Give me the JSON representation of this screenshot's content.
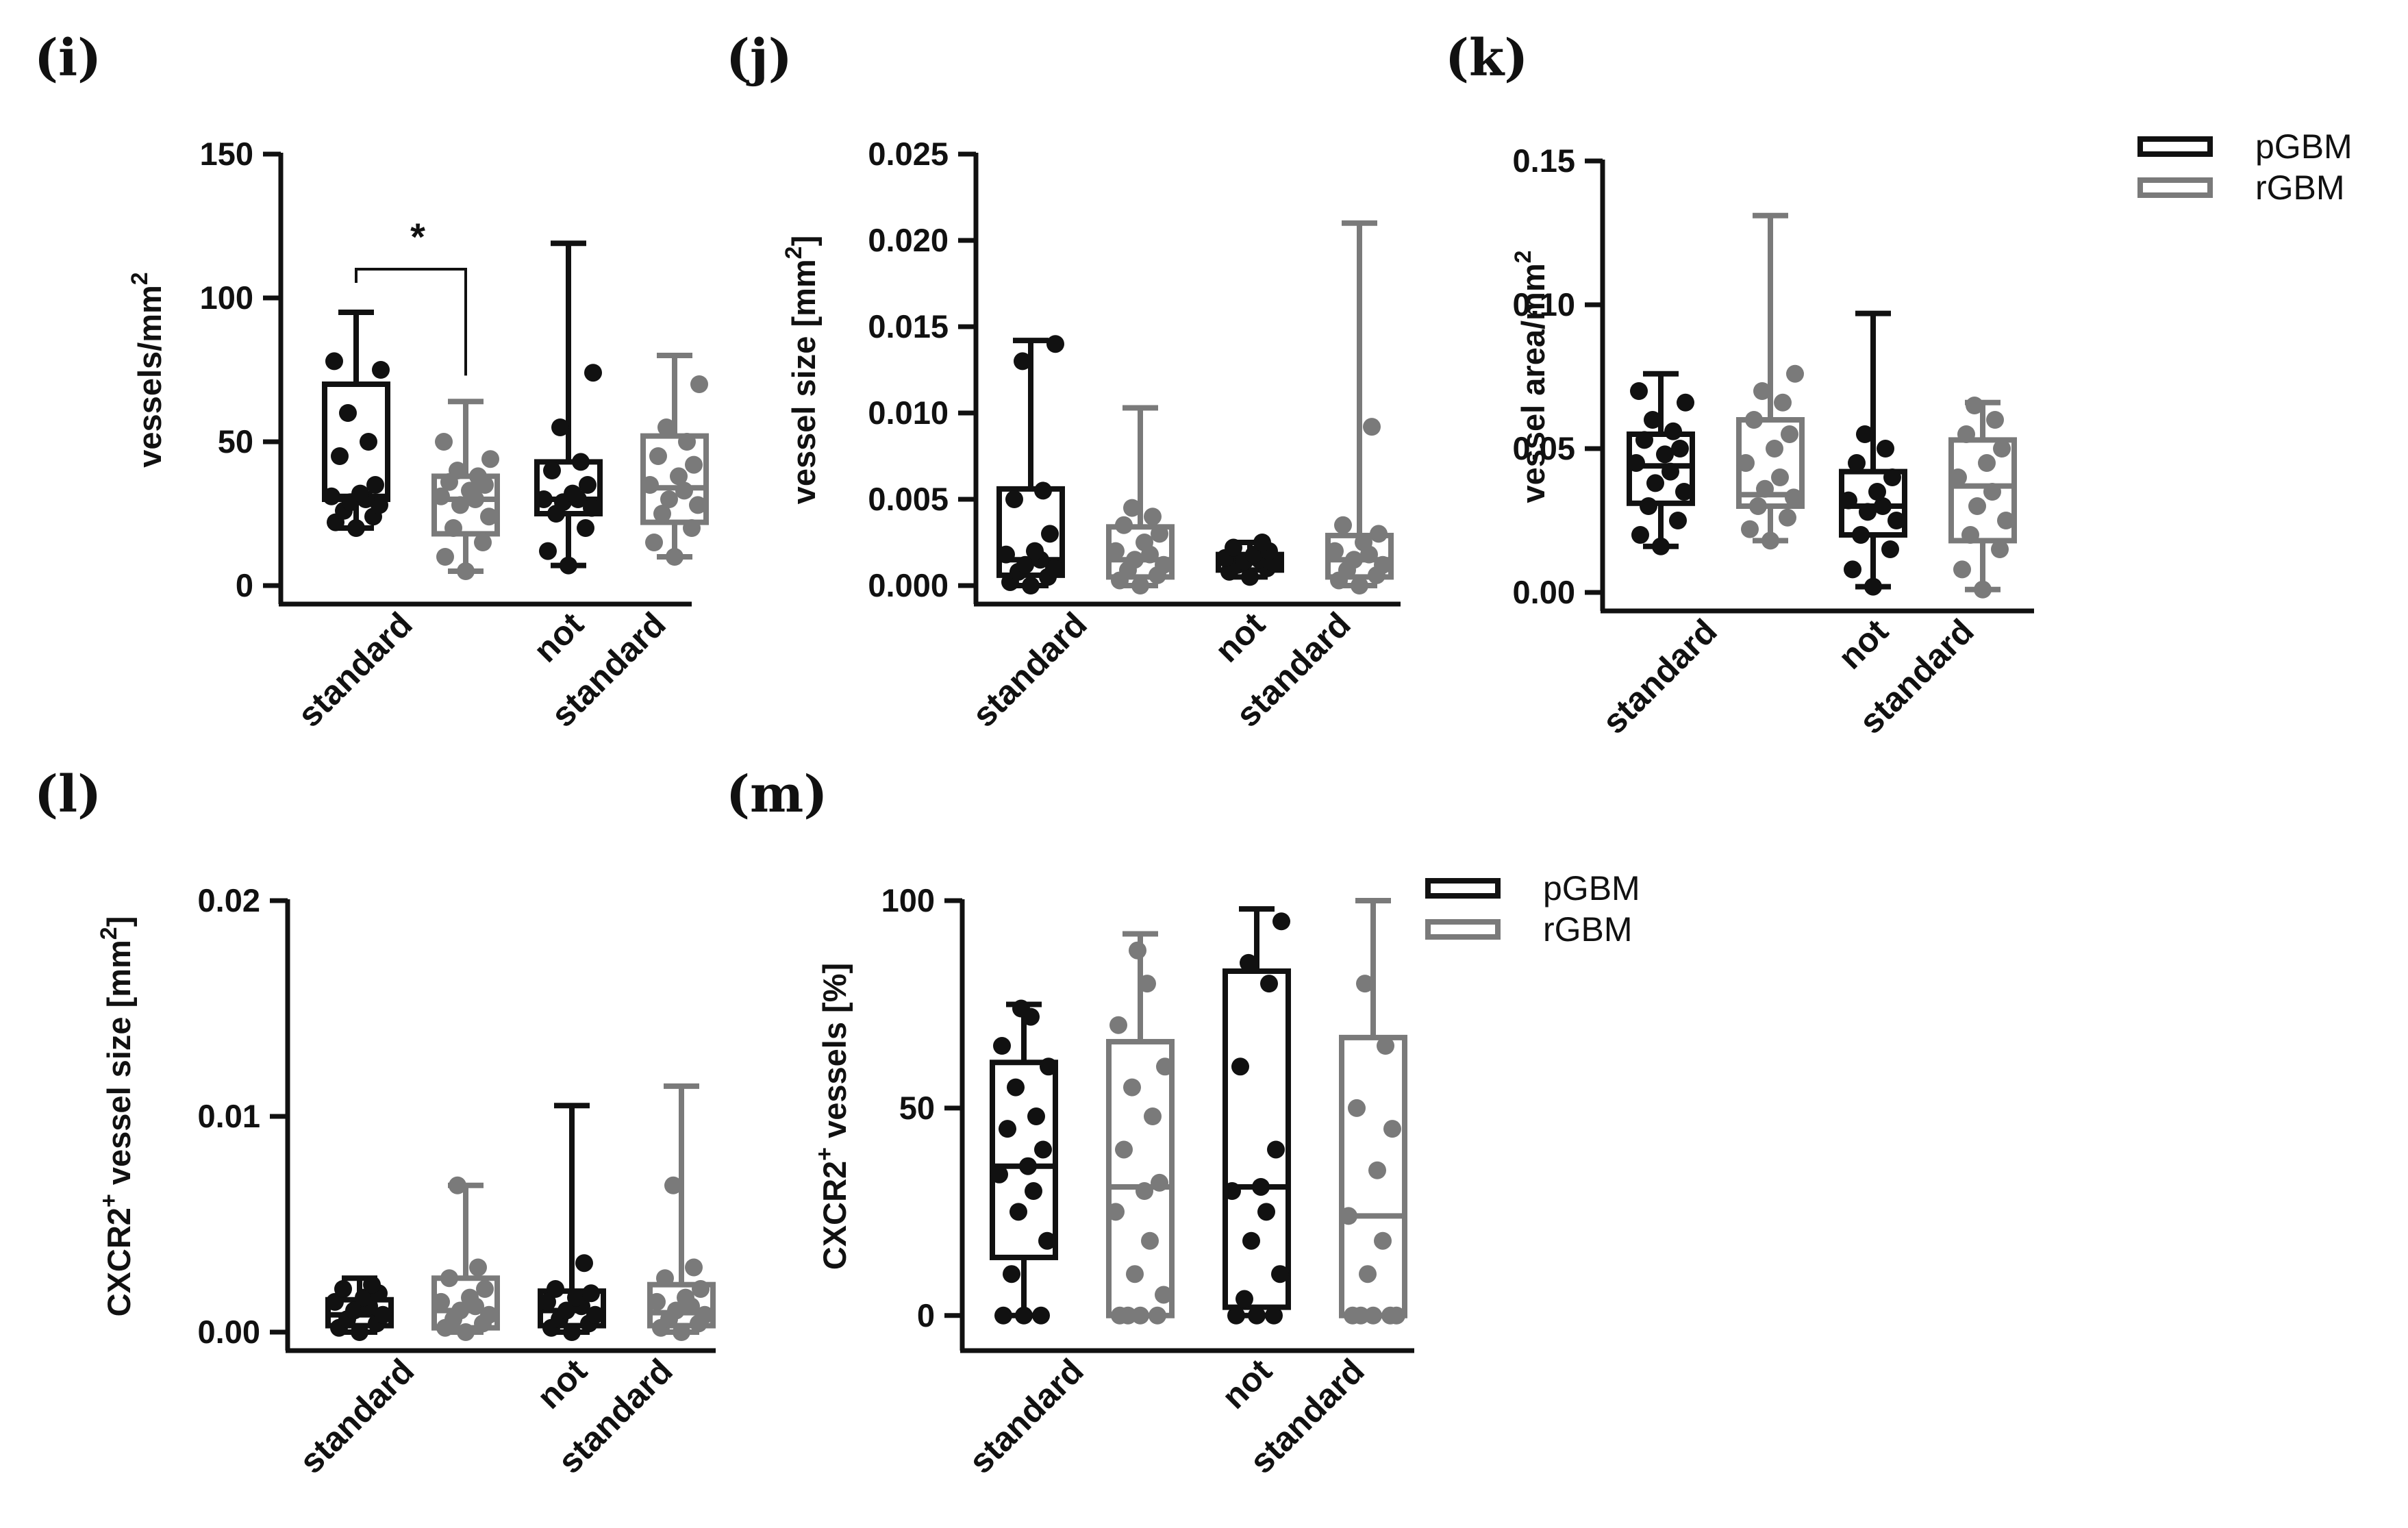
{
  "figure": {
    "colors": {
      "pGBM": "#111111",
      "rGBM": "#7a7a7a"
    },
    "legend_labels": [
      "pGBM",
      "rGBM"
    ]
  },
  "chart_data": [
    {
      "id": "i",
      "panel_label": "(i)",
      "type": "box",
      "ylabel": "vessels/mm",
      "ylabel_sup": "2",
      "ylim": [
        0,
        150
      ],
      "yticks": [
        0,
        50,
        100,
        150
      ],
      "ytick_labels": [
        "0",
        "50",
        "100",
        "150"
      ],
      "category_labels": [
        "standard",
        "not",
        "standard"
      ],
      "significance": "*",
      "groups": [
        {
          "series": "pGBM",
          "min": 20,
          "q1": 30,
          "median": 31,
          "q3": 70,
          "max": 95,
          "points": [
            20,
            22,
            24,
            26,
            28,
            29,
            30,
            31,
            32,
            35,
            45,
            50,
            60,
            75,
            78
          ]
        },
        {
          "series": "rGBM",
          "min": 5,
          "q1": 18,
          "median": 30,
          "q3": 38,
          "max": 64,
          "points": [
            5,
            10,
            15,
            20,
            24,
            28,
            30,
            31,
            33,
            35,
            36,
            38,
            40,
            44,
            50
          ]
        },
        {
          "series": "pGBM",
          "min": 7,
          "q1": 25,
          "median": 30,
          "q3": 43,
          "max": 119,
          "points": [
            7,
            12,
            20,
            25,
            27,
            29,
            30,
            30,
            32,
            35,
            40,
            43,
            55,
            74
          ]
        },
        {
          "series": "rGBM",
          "min": 10,
          "q1": 22,
          "median": 34,
          "q3": 52,
          "max": 80,
          "points": [
            10,
            15,
            20,
            25,
            28,
            30,
            33,
            35,
            38,
            42,
            45,
            50,
            55,
            70
          ]
        }
      ]
    },
    {
      "id": "j",
      "panel_label": "(j)",
      "type": "box",
      "ylabel": "vessel size [mm",
      "ylabel_sup": "2",
      "ylabel_suffix": "]",
      "ylim": [
        0,
        0.025
      ],
      "yticks": [
        0,
        0.005,
        0.01,
        0.015,
        0.02,
        0.025
      ],
      "ytick_labels": [
        "0.000",
        "0.005",
        "0.010",
        "0.015",
        "0.020",
        "0.025"
      ],
      "category_labels": [
        "standard",
        "not",
        "standard"
      ],
      "groups": [
        {
          "series": "pGBM",
          "min": 0.0,
          "q1": 0.0006,
          "median": 0.0015,
          "q3": 0.0056,
          "max": 0.0142,
          "points": [
            0.0,
            0.0002,
            0.0005,
            0.0008,
            0.001,
            0.0012,
            0.0015,
            0.0018,
            0.002,
            0.003,
            0.005,
            0.0055,
            0.013,
            0.014
          ]
        },
        {
          "series": "rGBM",
          "min": 0.0,
          "q1": 0.0005,
          "median": 0.0015,
          "q3": 0.0034,
          "max": 0.0103,
          "points": [
            0.0,
            0.0003,
            0.0006,
            0.0009,
            0.0012,
            0.0015,
            0.0018,
            0.002,
            0.0025,
            0.003,
            0.0035,
            0.004,
            0.0045
          ]
        },
        {
          "series": "pGBM",
          "min": 0.0005,
          "q1": 0.0009,
          "median": 0.0014,
          "q3": 0.0018,
          "max": 0.0025,
          "points": [
            0.0005,
            0.0008,
            0.001,
            0.0012,
            0.0013,
            0.0014,
            0.0015,
            0.0016,
            0.0018,
            0.002,
            0.0022,
            0.0025
          ]
        },
        {
          "series": "rGBM",
          "min": 0.0,
          "q1": 0.0005,
          "median": 0.0015,
          "q3": 0.0029,
          "max": 0.021,
          "points": [
            0.0,
            0.0003,
            0.0006,
            0.0009,
            0.0012,
            0.0015,
            0.0018,
            0.002,
            0.0025,
            0.003,
            0.0035,
            0.0092
          ]
        }
      ]
    },
    {
      "id": "k",
      "panel_label": "(k)",
      "type": "box",
      "ylabel": "vessel area/mm",
      "ylabel_sup": "2",
      "ylim": [
        0,
        0.15
      ],
      "yticks": [
        0,
        0.05,
        0.1,
        0.15
      ],
      "ytick_labels": [
        "0.00",
        "0.05",
        "0.10",
        "0.15"
      ],
      "category_labels": [
        "standard",
        "not",
        "standard"
      ],
      "groups": [
        {
          "series": "pGBM",
          "min": 0.016,
          "q1": 0.031,
          "median": 0.044,
          "q3": 0.055,
          "max": 0.076,
          "points": [
            0.016,
            0.02,
            0.025,
            0.03,
            0.035,
            0.038,
            0.042,
            0.045,
            0.048,
            0.05,
            0.053,
            0.056,
            0.06,
            0.066,
            0.07
          ]
        },
        {
          "series": "rGBM",
          "min": 0.018,
          "q1": 0.03,
          "median": 0.034,
          "q3": 0.06,
          "max": 0.131,
          "points": [
            0.018,
            0.022,
            0.026,
            0.03,
            0.033,
            0.036,
            0.04,
            0.045,
            0.05,
            0.055,
            0.06,
            0.066,
            0.07,
            0.076
          ]
        },
        {
          "series": "pGBM",
          "min": 0.002,
          "q1": 0.02,
          "median": 0.03,
          "q3": 0.042,
          "max": 0.097,
          "points": [
            0.002,
            0.008,
            0.015,
            0.02,
            0.025,
            0.028,
            0.03,
            0.032,
            0.035,
            0.04,
            0.045,
            0.05,
            0.055
          ]
        },
        {
          "series": "rGBM",
          "min": 0.001,
          "q1": 0.018,
          "median": 0.037,
          "q3": 0.053,
          "max": 0.066,
          "points": [
            0.001,
            0.008,
            0.015,
            0.02,
            0.025,
            0.03,
            0.035,
            0.04,
            0.045,
            0.05,
            0.055,
            0.06,
            0.065
          ]
        }
      ]
    },
    {
      "id": "l",
      "panel_label": "(l)",
      "type": "box",
      "ylabel": "CXCR2",
      "ylabel_sup": "+",
      "ylabel_suffix": " vessel size  [mm",
      "ylabel_sup2": "2",
      "ylabel_suffix2": "]",
      "ylim": [
        0,
        0.02
      ],
      "yticks": [
        0,
        0.01,
        0.02
      ],
      "ytick_labels": [
        "0.00",
        "0.01",
        "0.02"
      ],
      "category_labels": [
        "standard",
        "not",
        "standard"
      ],
      "groups": [
        {
          "series": "pGBM",
          "min": 0.0,
          "q1": 0.0003,
          "median": 0.0008,
          "q3": 0.0015,
          "max": 0.0025,
          "points": [
            0.0,
            0.0002,
            0.0004,
            0.0006,
            0.0008,
            0.001,
            0.0012,
            0.0014,
            0.0016,
            0.0018,
            0.002,
            0.0022
          ]
        },
        {
          "series": "rGBM",
          "min": 0.0,
          "q1": 0.0002,
          "median": 0.001,
          "q3": 0.0025,
          "max": 0.0068,
          "points": [
            0.0,
            0.0002,
            0.0004,
            0.0006,
            0.0008,
            0.001,
            0.0012,
            0.0014,
            0.0016,
            0.002,
            0.0025,
            0.003,
            0.0068
          ]
        },
        {
          "series": "pGBM",
          "min": 0.0,
          "q1": 0.0003,
          "median": 0.001,
          "q3": 0.0019,
          "max": 0.0105,
          "points": [
            0.0,
            0.0002,
            0.0004,
            0.0006,
            0.0008,
            0.001,
            0.0012,
            0.0014,
            0.0016,
            0.0018,
            0.002,
            0.0032
          ]
        },
        {
          "series": "rGBM",
          "min": 0.0,
          "q1": 0.0003,
          "median": 0.0009,
          "q3": 0.0022,
          "max": 0.0114,
          "points": [
            0.0,
            0.0002,
            0.0004,
            0.0006,
            0.0008,
            0.001,
            0.0012,
            0.0014,
            0.0016,
            0.002,
            0.0025,
            0.003,
            0.0068
          ]
        }
      ]
    },
    {
      "id": "m",
      "panel_label": "(m)",
      "type": "box",
      "ylabel": "CXCR2",
      "ylabel_sup": "+",
      "ylabel_suffix": " vessels [%]",
      "ylim": [
        -4,
        100
      ],
      "yticks": [
        0,
        50,
        100
      ],
      "ytick_labels": [
        "0",
        "50",
        "100"
      ],
      "category_labels": [
        "standard",
        "not",
        "standard"
      ],
      "groups": [
        {
          "series": "pGBM",
          "min": 0,
          "q1": 14,
          "median": 36,
          "q3": 61,
          "max": 75,
          "points": [
            0,
            0,
            0,
            10,
            18,
            25,
            30,
            34,
            36,
            40,
            45,
            48,
            55,
            60,
            65,
            72,
            74
          ]
        },
        {
          "series": "rGBM",
          "min": 0,
          "q1": 0,
          "median": 31,
          "q3": 66,
          "max": 92,
          "points": [
            0,
            0,
            0,
            0,
            5,
            10,
            18,
            25,
            30,
            32,
            40,
            48,
            55,
            60,
            70,
            80,
            88
          ]
        },
        {
          "series": "pGBM",
          "min": 0,
          "q1": 2,
          "median": 31,
          "q3": 83,
          "max": 98,
          "points": [
            0,
            0,
            0,
            4,
            10,
            18,
            25,
            30,
            31,
            40,
            60,
            80,
            85,
            95
          ]
        },
        {
          "series": "rGBM",
          "min": 0,
          "q1": 0,
          "median": 24,
          "q3": 67,
          "max": 100,
          "points": [
            0,
            0,
            0,
            0,
            0,
            10,
            18,
            24,
            35,
            45,
            50,
            65,
            80
          ]
        }
      ]
    }
  ]
}
